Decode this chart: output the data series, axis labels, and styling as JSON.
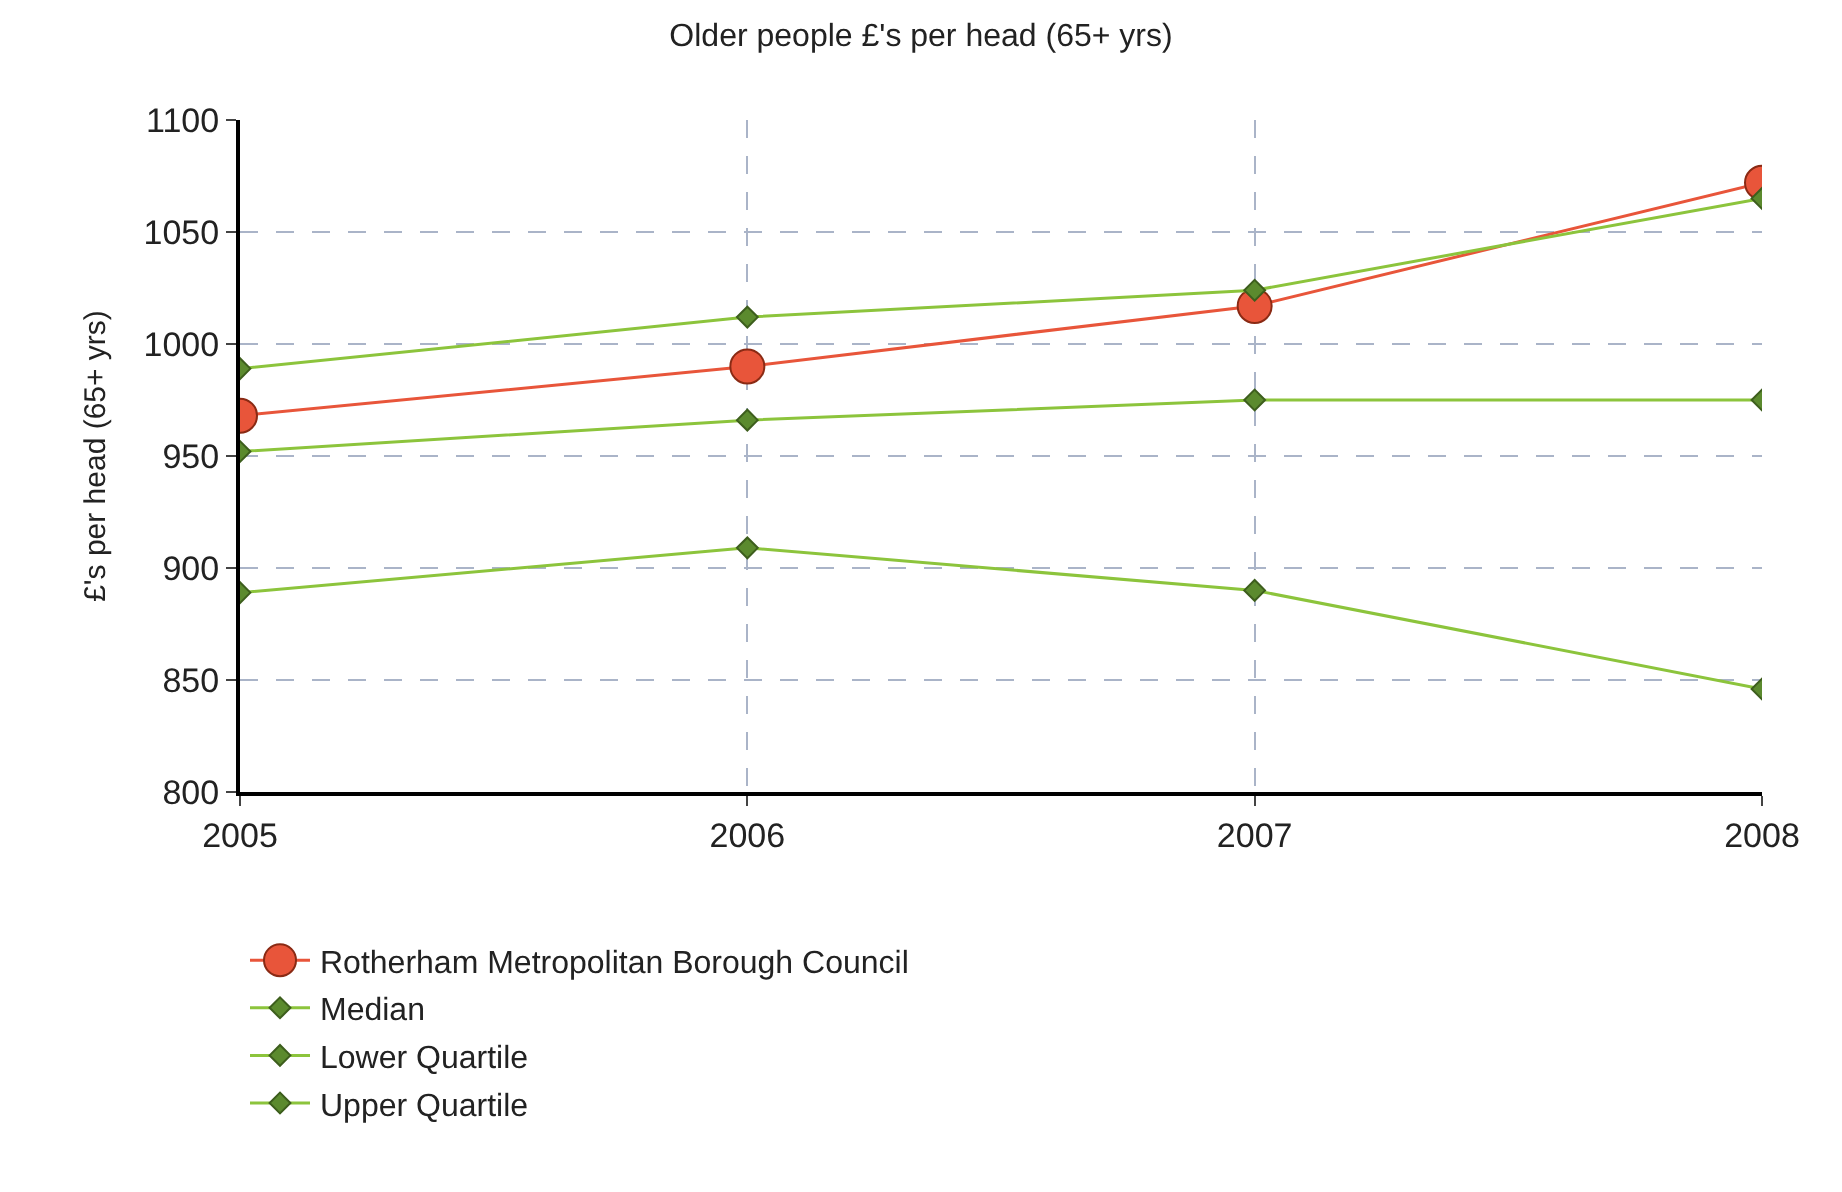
{
  "chart_data": {
    "type": "line",
    "title": "Older people £'s per head (65+ yrs)",
    "ylabel": "£'s per head (65+ yrs)",
    "x": [
      2005,
      2006,
      2007,
      2008
    ],
    "xlim": [
      2005,
      2008
    ],
    "xticks": [
      2005,
      2006,
      2007,
      2008
    ],
    "ylim": [
      800,
      1100
    ],
    "yticks": [
      800,
      850,
      900,
      950,
      1000,
      1050,
      1100
    ],
    "grid": true,
    "legend": "bottom",
    "series": [
      {
        "name": "Rotherham Metropolitan Borough Council",
        "color": "#e8553a",
        "marker": "circle",
        "values": [
          968,
          990,
          1017,
          1072
        ]
      },
      {
        "name": "Median",
        "color": "#8cc43c",
        "marker": "diamond",
        "values": [
          952,
          966,
          975,
          975
        ]
      },
      {
        "name": "Lower Quartile",
        "color": "#8cc43c",
        "marker": "diamond",
        "values": [
          889,
          909,
          890,
          846
        ]
      },
      {
        "name": "Upper Quartile",
        "color": "#8cc43c",
        "marker": "diamond",
        "values": [
          989,
          1012,
          1024,
          1065
        ]
      }
    ]
  }
}
